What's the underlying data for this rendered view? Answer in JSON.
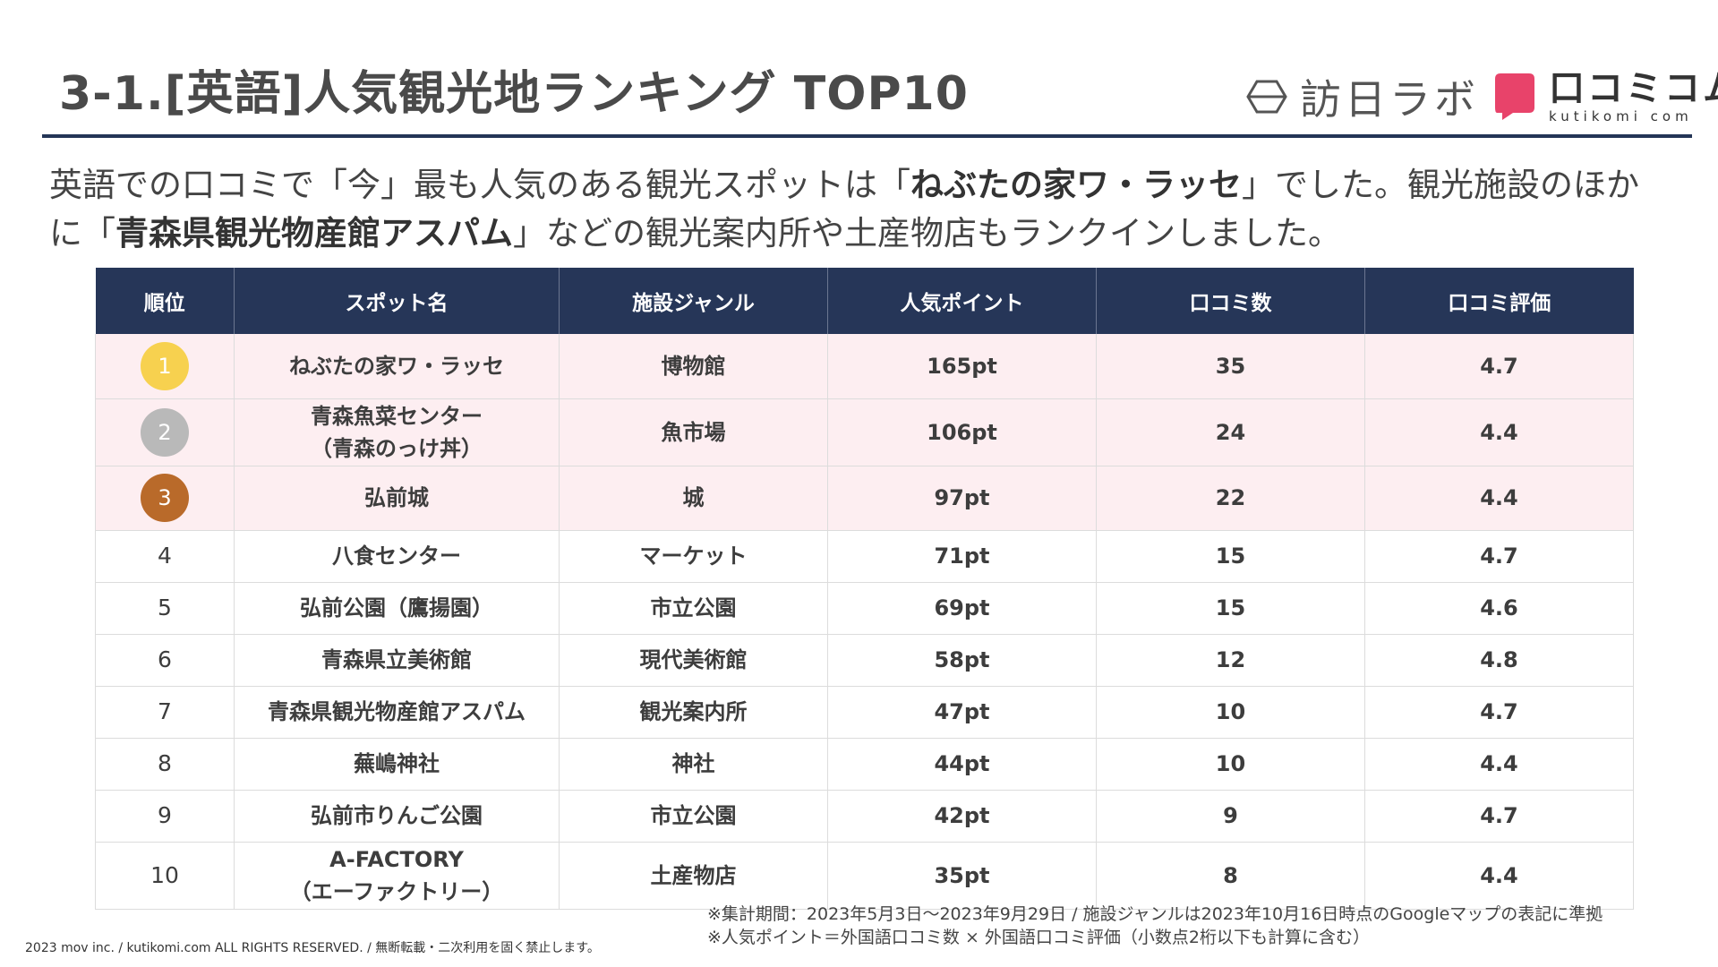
{
  "title": "3-1.[英語]人気観光地ランキング TOP10",
  "logos": {
    "houjin_lab": "訪日ラボ",
    "kutikomi_jp": "口コミコム",
    "kutikomi_en": "kutikomi com",
    "kutikomi_color": "#e8436a"
  },
  "lead": {
    "p1": "英語での口コミで「今」最も人気のある観光スポットは「",
    "b1": "ねぶたの家ワ・ラッセ",
    "p2": "」でした。観光施設のほかに「",
    "b2": "青森県観光物産館アスパム",
    "p3": "」などの観光案内所や土産物店もランクインしました。"
  },
  "table": {
    "header_color": "#263658",
    "highlight_color": "#fdeef1",
    "headers": [
      "順位",
      "スポット名",
      "施設ジャンル",
      "人気ポイント",
      "口コミ数",
      "口コミ評価"
    ],
    "medal_colors": [
      "#f7d14f",
      "#b9b9b9",
      "#b96a2a"
    ],
    "rows": [
      {
        "rank": "1",
        "name": "ねぶたの家ワ・ラッセ",
        "name2": "",
        "genre": "博物館",
        "points": "165pt",
        "count": "35",
        "rating": "4.7"
      },
      {
        "rank": "2",
        "name": "青森魚菜センター",
        "name2": "（青森のっけ丼）",
        "genre": "魚市場",
        "points": "106pt",
        "count": "24",
        "rating": "4.4"
      },
      {
        "rank": "3",
        "name": "弘前城",
        "name2": "",
        "genre": "城",
        "points": "97pt",
        "count": "22",
        "rating": "4.4"
      },
      {
        "rank": "4",
        "name": "八食センター",
        "name2": "",
        "genre": "マーケット",
        "points": "71pt",
        "count": "15",
        "rating": "4.7"
      },
      {
        "rank": "5",
        "name": "弘前公園（鷹揚園）",
        "name2": "",
        "genre": "市立公園",
        "points": "69pt",
        "count": "15",
        "rating": "4.6"
      },
      {
        "rank": "6",
        "name": "青森県立美術館",
        "name2": "",
        "genre": "現代美術館",
        "points": "58pt",
        "count": "12",
        "rating": "4.8"
      },
      {
        "rank": "7",
        "name": "青森県観光物産館アスパム",
        "name2": "",
        "genre": "観光案内所",
        "points": "47pt",
        "count": "10",
        "rating": "4.7"
      },
      {
        "rank": "8",
        "name": "蕪嶋神社",
        "name2": "",
        "genre": "神社",
        "points": "44pt",
        "count": "10",
        "rating": "4.4"
      },
      {
        "rank": "9",
        "name": "弘前市りんご公園",
        "name2": "",
        "genre": "市立公園",
        "points": "42pt",
        "count": "9",
        "rating": "4.7"
      },
      {
        "rank": "10",
        "name": "A-FACTORY",
        "name2": "（エーファクトリー）",
        "genre": "土産物店",
        "points": "35pt",
        "count": "8",
        "rating": "4.4"
      }
    ]
  },
  "notes": [
    "※集計期間：2023年5月3日～2023年9月29日 / 施設ジャンルは2023年10月16日時点のGoogleマップの表記に準拠",
    "※人気ポイント＝外国語口コミ数 × 外国語口コミ評価（小数点2桁以下も計算に含む）"
  ],
  "copyright": "2023 mov inc. / kutikomi.com ALL RIGHTS RESERVED. / 無断転載・二次利用を固く禁止します。"
}
